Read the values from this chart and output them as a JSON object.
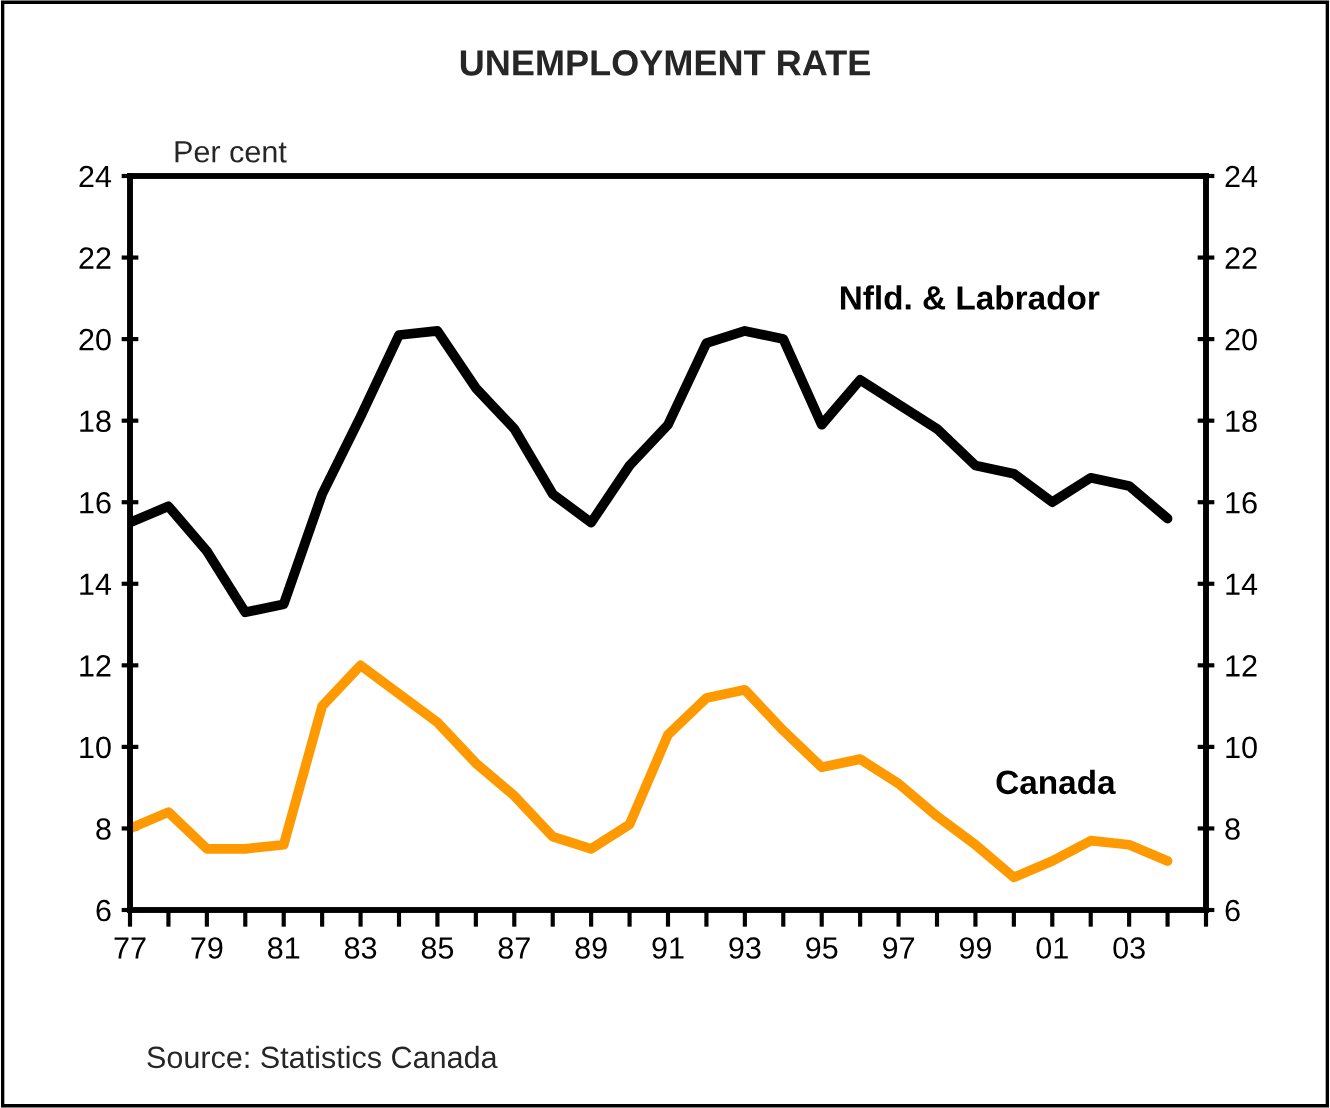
{
  "chart_data": {
    "type": "line",
    "title": "UNEMPLOYMENT RATE",
    "ylabel": "Per cent",
    "x": [
      1977,
      1978,
      1979,
      1980,
      1981,
      1982,
      1983,
      1984,
      1985,
      1986,
      1987,
      1988,
      1989,
      1990,
      1991,
      1992,
      1993,
      1994,
      1995,
      1996,
      1997,
      1998,
      1999,
      2000,
      2001,
      2002,
      2003,
      2004
    ],
    "series": [
      {
        "name": "Nfld. & Labrador",
        "color": "#000000",
        "values": [
          15.5,
          15.9,
          14.8,
          13.3,
          13.5,
          16.2,
          18.1,
          20.1,
          20.2,
          18.8,
          17.8,
          16.2,
          15.5,
          16.9,
          17.9,
          19.9,
          20.2,
          20.0,
          17.9,
          19.0,
          18.4,
          17.8,
          16.9,
          16.7,
          16.0,
          16.6,
          16.4,
          15.6
        ]
      },
      {
        "name": "Canada",
        "color": "#ff9900",
        "values": [
          8.0,
          8.4,
          7.5,
          7.5,
          7.6,
          11.0,
          12.0,
          11.3,
          10.6,
          9.6,
          8.8,
          7.8,
          7.5,
          8.1,
          10.3,
          11.2,
          11.4,
          10.4,
          9.5,
          9.7,
          9.1,
          8.3,
          7.6,
          6.8,
          7.2,
          7.7,
          7.6,
          7.2
        ]
      }
    ],
    "xlim": [
      1977,
      2005
    ],
    "xticks": [
      {
        "value": 1977,
        "label": "77"
      },
      {
        "value": 1978,
        "label": null
      },
      {
        "value": 1979,
        "label": "79"
      },
      {
        "value": 1980,
        "label": null
      },
      {
        "value": 1981,
        "label": "81"
      },
      {
        "value": 1982,
        "label": null
      },
      {
        "value": 1983,
        "label": "83"
      },
      {
        "value": 1984,
        "label": null
      },
      {
        "value": 1985,
        "label": "85"
      },
      {
        "value": 1986,
        "label": null
      },
      {
        "value": 1987,
        "label": "87"
      },
      {
        "value": 1988,
        "label": null
      },
      {
        "value": 1989,
        "label": "89"
      },
      {
        "value": 1990,
        "label": null
      },
      {
        "value": 1991,
        "label": "91"
      },
      {
        "value": 1992,
        "label": null
      },
      {
        "value": 1993,
        "label": "93"
      },
      {
        "value": 1994,
        "label": null
      },
      {
        "value": 1995,
        "label": "95"
      },
      {
        "value": 1996,
        "label": null
      },
      {
        "value": 1997,
        "label": "97"
      },
      {
        "value": 1998,
        "label": null
      },
      {
        "value": 1999,
        "label": "99"
      },
      {
        "value": 2000,
        "label": null
      },
      {
        "value": 2001,
        "label": "01"
      },
      {
        "value": 2002,
        "label": null
      },
      {
        "value": 2003,
        "label": "03"
      },
      {
        "value": 2004,
        "label": null
      },
      {
        "value": 2005,
        "label": null
      }
    ],
    "ylim": [
      6,
      24
    ],
    "yticks": [
      6,
      8,
      10,
      12,
      14,
      16,
      18,
      20,
      22,
      24
    ],
    "y2lim": [
      6,
      24
    ],
    "y2ticks": [
      6,
      8,
      10,
      12,
      14,
      16,
      18,
      20,
      22,
      24
    ],
    "grid": false,
    "legend": false,
    "marker": "none",
    "line_style": "solid",
    "annotations": [
      "Source: Statistics Canada"
    ]
  }
}
